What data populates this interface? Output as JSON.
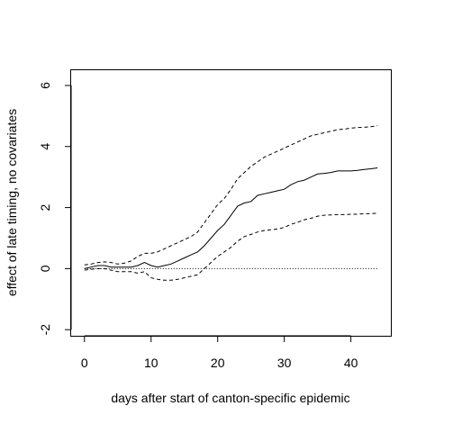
{
  "chart_data": {
    "type": "line",
    "xlabel": "days after start of canton-specific epidemic",
    "ylabel": "effect of late timing, no covariates",
    "xlim": [
      -2,
      46
    ],
    "ylim": [
      -2.2,
      6.5
    ],
    "xticks": [
      "0",
      "10",
      "20",
      "30",
      "40"
    ],
    "yticks": [
      "-2",
      "0",
      "2",
      "4",
      "6"
    ],
    "reference_line": {
      "y": 0,
      "style": "dotted"
    },
    "grid": false,
    "x": [
      0,
      1,
      2,
      3,
      4,
      5,
      6,
      7,
      8,
      9,
      10,
      11,
      12,
      13,
      14,
      15,
      16,
      17,
      18,
      19,
      20,
      21,
      22,
      23,
      24,
      25,
      26,
      27,
      28,
      29,
      30,
      31,
      32,
      33,
      34,
      35,
      36,
      37,
      38,
      39,
      40,
      41,
      42,
      43,
      44
    ],
    "series": [
      {
        "style": "solid",
        "values": [
          0.0,
          0.05,
          0.1,
          0.1,
          0.05,
          0.05,
          0.05,
          0.05,
          0.1,
          0.2,
          0.1,
          0.05,
          0.1,
          0.15,
          0.25,
          0.35,
          0.45,
          0.55,
          0.75,
          1.0,
          1.25,
          1.45,
          1.75,
          2.05,
          2.15,
          2.2,
          2.4,
          2.45,
          2.5,
          2.55,
          2.6,
          2.75,
          2.85,
          2.9,
          3.0,
          3.1,
          3.12,
          3.15,
          3.2,
          3.2,
          3.2,
          3.22,
          3.25,
          3.27,
          3.3
        ]
      },
      {
        "style": "dashed",
        "values": [
          0.12,
          0.15,
          0.2,
          0.22,
          0.2,
          0.15,
          0.18,
          0.25,
          0.4,
          0.5,
          0.5,
          0.55,
          0.65,
          0.75,
          0.85,
          0.95,
          1.05,
          1.2,
          1.5,
          1.8,
          2.1,
          2.3,
          2.6,
          2.95,
          3.15,
          3.35,
          3.5,
          3.65,
          3.75,
          3.85,
          3.95,
          4.05,
          4.15,
          4.25,
          4.35,
          4.4,
          4.45,
          4.5,
          4.55,
          4.57,
          4.6,
          4.62,
          4.63,
          4.65,
          4.68
        ]
      },
      {
        "style": "dashed",
        "values": [
          -0.05,
          -0.02,
          0.0,
          0.0,
          -0.05,
          -0.1,
          -0.1,
          -0.1,
          -0.15,
          -0.1,
          -0.3,
          -0.35,
          -0.38,
          -0.38,
          -0.35,
          -0.3,
          -0.25,
          -0.2,
          0.0,
          0.2,
          0.4,
          0.55,
          0.7,
          0.9,
          1.05,
          1.12,
          1.2,
          1.25,
          1.27,
          1.3,
          1.35,
          1.45,
          1.52,
          1.6,
          1.65,
          1.72,
          1.75,
          1.76,
          1.77,
          1.77,
          1.78,
          1.78,
          1.8,
          1.8,
          1.82
        ]
      }
    ]
  }
}
